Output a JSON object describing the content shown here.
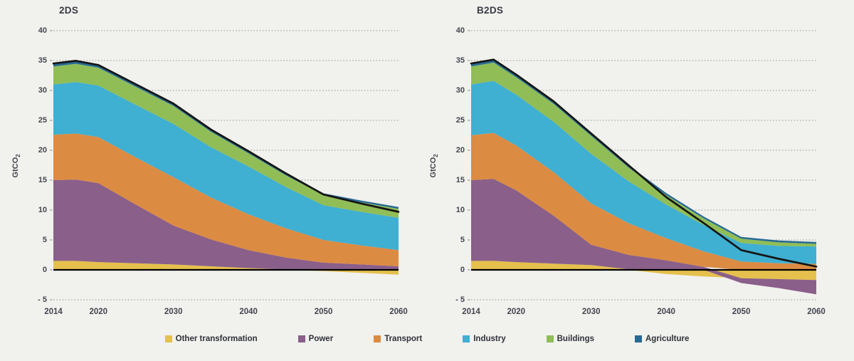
{
  "page": {
    "background": "#f1f1ee"
  },
  "chart_data": {
    "type": "area",
    "stacked": true,
    "grid": "dotted horizontal gridlines every 5 units, solid black zero axis",
    "legend_position": "bottom",
    "ylabel_main": "GtCO",
    "ylabel_sub": "2",
    "xlim": [
      2014,
      2060
    ],
    "ylim": [
      -5,
      40
    ],
    "x": [
      2014,
      2017,
      2020,
      2025,
      2030,
      2035,
      2040,
      2045,
      2050,
      2055,
      2060
    ],
    "x_tick_years": [
      2014,
      2020,
      2030,
      2040,
      2050,
      2060
    ],
    "x_tick_labels": [
      "2014",
      "2020",
      "2030",
      "2040",
      "2050",
      "2060"
    ],
    "y_tick_values": [
      40,
      35,
      30,
      25,
      20,
      15,
      10,
      5,
      0,
      -5
    ],
    "y_tick_labels": [
      "40",
      "35",
      "30",
      "25",
      "20",
      "15",
      "10",
      "5",
      "0",
      "- 5"
    ],
    "legend": [
      {
        "label": "Other transformation",
        "color": "#e5c04d"
      },
      {
        "label": "Power",
        "color": "#8a5f8a"
      },
      {
        "label": "Transport",
        "color": "#dc8b42"
      },
      {
        "label": "Industry",
        "color": "#3fafd2"
      },
      {
        "label": "Buildings",
        "color": "#90bd56"
      },
      {
        "label": "Agriculture",
        "color": "#266a91"
      }
    ],
    "total_line": {
      "description": "net total of all sectors (GtCO2)",
      "color": "#151515"
    },
    "charts": [
      {
        "title": "2DS",
        "series": [
          {
            "name": "Other transformation",
            "values": [
              1.5,
              1.5,
              1.3,
              1.1,
              0.9,
              0.6,
              0.3,
              0.05,
              -0.2,
              -0.5,
              -0.8
            ]
          },
          {
            "name": "Power",
            "values": [
              13.5,
              13.6,
              13.2,
              9.8,
              6.5,
              4.5,
              3.0,
              2.0,
              1.2,
              0.9,
              0.6
            ]
          },
          {
            "name": "Transport",
            "values": [
              7.6,
              7.7,
              7.7,
              7.9,
              8.1,
              7.0,
              6.0,
              4.9,
              3.8,
              3.2,
              2.7
            ]
          },
          {
            "name": "Industry",
            "values": [
              8.4,
              8.6,
              8.6,
              8.8,
              8.9,
              8.4,
              8.0,
              6.9,
              5.8,
              5.6,
              5.4
            ]
          },
          {
            "name": "Buildings",
            "values": [
              3.0,
              3.05,
              3.0,
              3.0,
              3.0,
              2.6,
              2.2,
              1.95,
              1.7,
              1.6,
              1.5
            ]
          },
          {
            "name": "Agriculture",
            "values": [
              0.5,
              0.5,
              0.45,
              0.42,
              0.4,
              0.37,
              0.35,
              0.32,
              0.3,
              0.3,
              0.3
            ]
          }
        ],
        "net_total_approx": [
          34.5,
          34.95,
          34.25,
          31.0,
          27.8,
          23.5,
          19.85,
          16.1,
          12.6,
          11.1,
          9.7
        ]
      },
      {
        "title": "B2DS",
        "series": [
          {
            "name": "Other transformation",
            "values": [
              1.5,
              1.5,
              1.3,
              1.05,
              0.8,
              0.1,
              -0.7,
              -1.1,
              -1.4,
              -1.55,
              -1.7
            ]
          },
          {
            "name": "Power",
            "values": [
              13.5,
              13.7,
              12.0,
              8.0,
              3.4,
              2.4,
              1.6,
              0.5,
              -0.8,
              -1.5,
              -2.4
            ]
          },
          {
            "name": "Transport",
            "values": [
              7.5,
              7.7,
              7.5,
              7.3,
              6.9,
              5.3,
              3.7,
              2.6,
              1.4,
              1.1,
              1.0
            ]
          },
          {
            "name": "Industry",
            "values": [
              8.5,
              8.7,
              8.5,
              8.4,
              8.3,
              7.0,
              5.6,
              4.4,
              3.1,
              2.9,
              2.9
            ]
          },
          {
            "name": "Buildings",
            "values": [
              3.0,
              3.05,
              2.9,
              3.0,
              3.0,
              2.3,
              1.6,
              1.1,
              0.7,
              0.6,
              0.45
            ]
          },
          {
            "name": "Agriculture",
            "values": [
              0.5,
              0.5,
              0.45,
              0.42,
              0.4,
              0.37,
              0.35,
              0.32,
              0.3,
              0.3,
              0.3
            ]
          }
        ],
        "net_total_approx": [
          34.5,
          35.15,
          32.65,
          28.2,
          22.8,
          17.5,
          12.15,
          7.8,
          3.3,
          1.85,
          0.55
        ]
      }
    ]
  }
}
